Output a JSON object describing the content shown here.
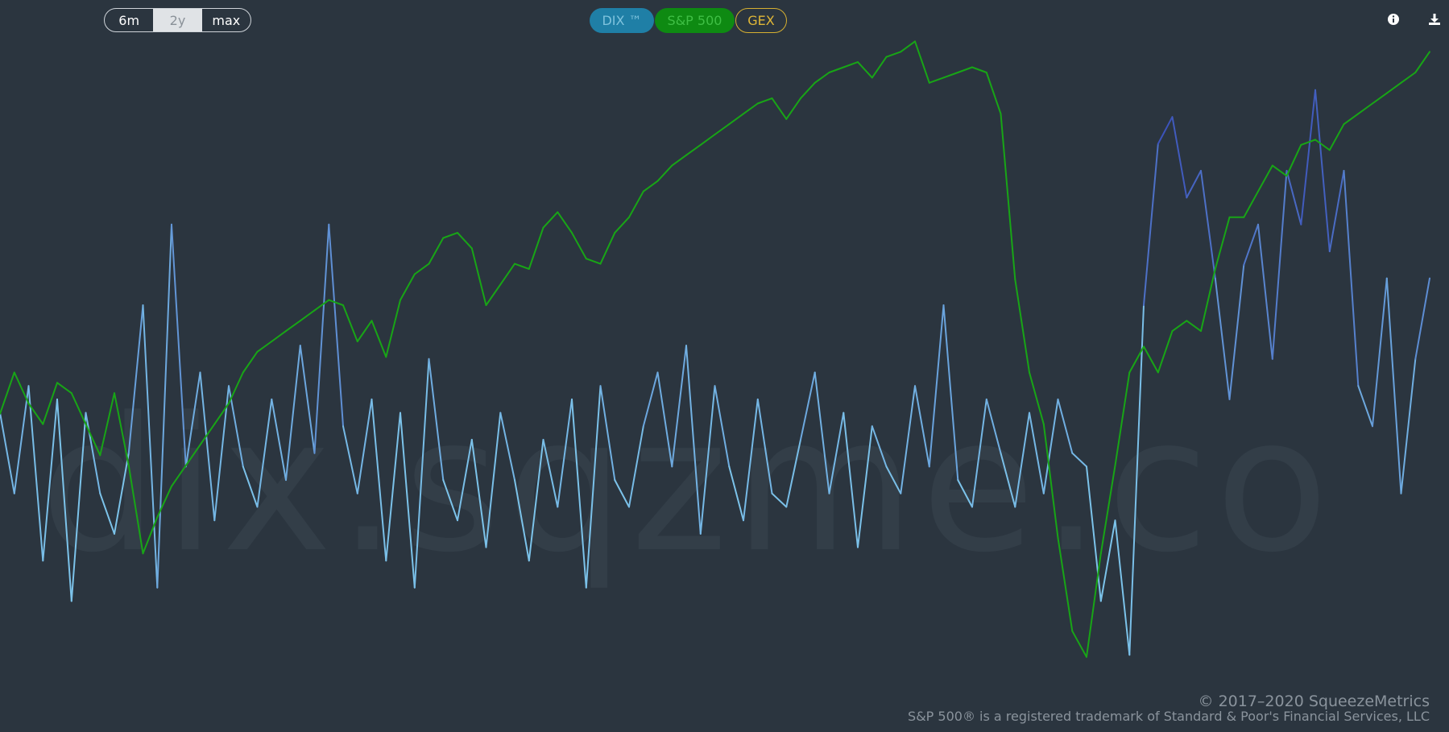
{
  "range_selector": {
    "options": [
      "6m",
      "2y",
      "max"
    ],
    "selected": "2y"
  },
  "series_toggles": {
    "dix_label": "DIX ™",
    "spx_label": "S&P 500",
    "gex_label": "GEX"
  },
  "icons": {
    "info": "info-icon",
    "download": "download-icon"
  },
  "watermark": "dix.sqzme.co",
  "footer": {
    "copyright": "© 2017–2020 SqueezeMetrics",
    "trademark": "S&P 500® is a registered trademark of Standard & Poor's Financial Services, LLC"
  },
  "colors": {
    "background": "#2b353f",
    "dix_light": "#7cc3ea",
    "dix_dark": "#3a4fb8",
    "spx": "#18a516",
    "gex": "#e0b737"
  },
  "chart_data": {
    "type": "line",
    "title": "",
    "xlabel": "",
    "ylabel": "",
    "grid": false,
    "x_range": [
      0,
      100
    ],
    "series": [
      {
        "name": "DIX ™",
        "color_low": "#7cc3ea",
        "color_high": "#3a4fb8",
        "x": [
          0,
          1,
          2,
          3,
          4,
          5,
          6,
          7,
          8,
          9,
          10,
          11,
          12,
          13,
          14,
          15,
          16,
          17,
          18,
          19,
          20,
          21,
          22,
          23,
          24,
          25,
          26,
          27,
          28,
          29,
          30,
          31,
          32,
          33,
          34,
          35,
          36,
          37,
          38,
          39,
          40,
          41,
          42,
          43,
          44,
          45,
          46,
          47,
          48,
          49,
          50,
          51,
          52,
          53,
          54,
          55,
          56,
          57,
          58,
          59,
          60,
          61,
          62,
          63,
          64,
          65,
          66,
          67,
          68,
          69,
          70,
          71,
          72,
          73,
          74,
          75,
          76,
          77,
          78,
          79,
          80,
          81,
          82,
          83,
          84,
          85,
          86,
          87,
          88,
          89,
          90,
          91,
          92,
          93,
          94,
          95,
          96,
          97,
          98,
          99,
          100
        ],
        "values": [
          0.44,
          0.38,
          0.46,
          0.33,
          0.45,
          0.3,
          0.44,
          0.38,
          0.35,
          0.41,
          0.52,
          0.31,
          0.58,
          0.4,
          0.47,
          0.36,
          0.46,
          0.4,
          0.37,
          0.45,
          0.39,
          0.49,
          0.41,
          0.58,
          0.43,
          0.38,
          0.45,
          0.33,
          0.44,
          0.31,
          0.48,
          0.39,
          0.36,
          0.42,
          0.34,
          0.44,
          0.39,
          0.33,
          0.42,
          0.37,
          0.45,
          0.31,
          0.46,
          0.39,
          0.37,
          0.43,
          0.47,
          0.4,
          0.49,
          0.35,
          0.46,
          0.4,
          0.36,
          0.45,
          0.38,
          0.37,
          0.42,
          0.47,
          0.38,
          0.44,
          0.34,
          0.43,
          0.4,
          0.38,
          0.46,
          0.4,
          0.52,
          0.39,
          0.37,
          0.45,
          0.41,
          0.37,
          0.44,
          0.38,
          0.45,
          0.41,
          0.4,
          0.3,
          0.36,
          0.26,
          0.52,
          0.64,
          0.66,
          0.6,
          0.62,
          0.54,
          0.45,
          0.55,
          0.58,
          0.48,
          0.62,
          0.58,
          0.68,
          0.56,
          0.62,
          0.46,
          0.43,
          0.54,
          0.38,
          0.48,
          0.54
        ]
      },
      {
        "name": "S&P 500",
        "color": "#18a516",
        "x": [
          0,
          1,
          2,
          3,
          4,
          5,
          6,
          7,
          8,
          9,
          10,
          11,
          12,
          13,
          14,
          15,
          16,
          17,
          18,
          19,
          20,
          21,
          22,
          23,
          24,
          25,
          26,
          27,
          28,
          29,
          30,
          31,
          32,
          33,
          34,
          35,
          36,
          37,
          38,
          39,
          40,
          41,
          42,
          43,
          44,
          45,
          46,
          47,
          48,
          49,
          50,
          51,
          52,
          53,
          54,
          55,
          56,
          57,
          58,
          59,
          60,
          61,
          62,
          63,
          64,
          65,
          66,
          67,
          68,
          69,
          70,
          71,
          72,
          73,
          74,
          75,
          76,
          77,
          78,
          79,
          80,
          81,
          82,
          83,
          84,
          85,
          86,
          87,
          88,
          89,
          90,
          91,
          92,
          93,
          94,
          95,
          96,
          97,
          98,
          99,
          100
        ],
        "values": [
          2720,
          2800,
          2740,
          2700,
          2780,
          2760,
          2700,
          2640,
          2760,
          2620,
          2450,
          2520,
          2580,
          2620,
          2660,
          2700,
          2740,
          2800,
          2840,
          2860,
          2880,
          2900,
          2920,
          2940,
          2930,
          2860,
          2900,
          2830,
          2940,
          2990,
          3010,
          3060,
          3070,
          3040,
          2930,
          2970,
          3010,
          3000,
          3080,
          3110,
          3070,
          3020,
          3010,
          3070,
          3100,
          3150,
          3170,
          3200,
          3220,
          3240,
          3260,
          3280,
          3300,
          3320,
          3330,
          3290,
          3330,
          3360,
          3380,
          3390,
          3400,
          3370,
          3410,
          3420,
          3440,
          3360,
          3370,
          3380,
          3390,
          3380,
          3300,
          2980,
          2800,
          2700,
          2480,
          2300,
          2250,
          2450,
          2620,
          2800,
          2850,
          2800,
          2880,
          2900,
          2880,
          3000,
          3100,
          3100,
          3150,
          3200,
          3180,
          3240,
          3250,
          3230,
          3280,
          3300,
          3320,
          3340,
          3360,
          3380,
          3420
        ]
      }
    ]
  }
}
